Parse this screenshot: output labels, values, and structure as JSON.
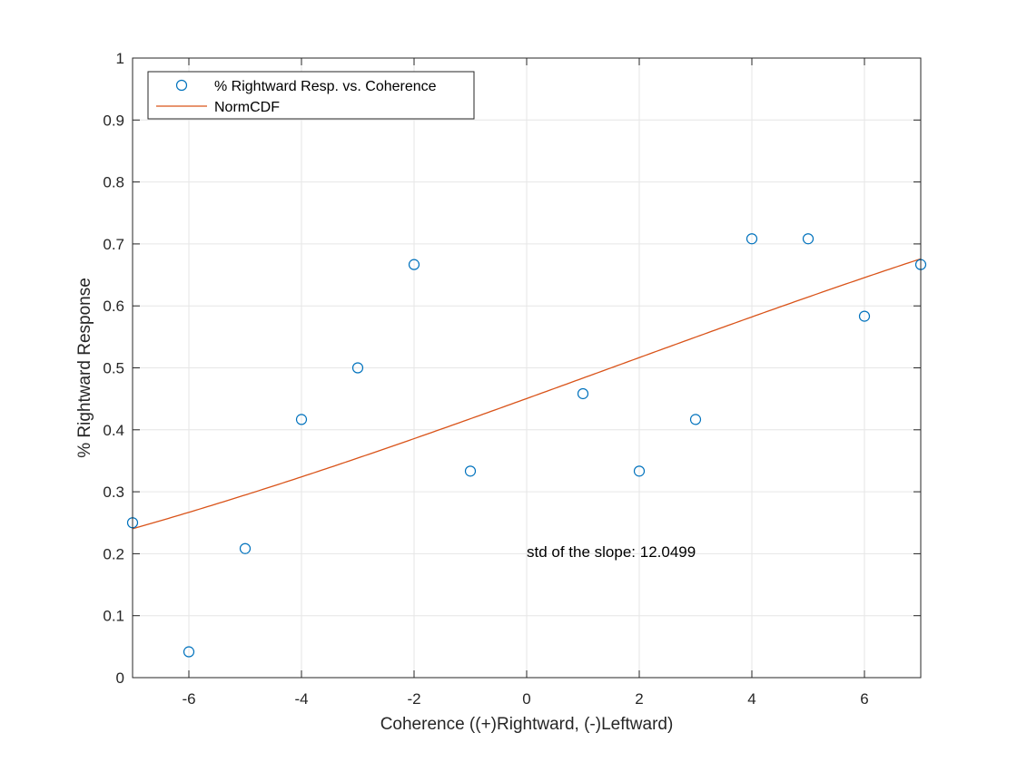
{
  "chart_data": {
    "type": "scatter",
    "xlabel": "Coherence ((+)Rightward, (-)Leftward)",
    "ylabel": "% Rightward Response",
    "xlim": [
      -7,
      7
    ],
    "ylim": [
      0,
      1
    ],
    "xticks": [
      -6,
      -4,
      -2,
      0,
      2,
      4,
      6
    ],
    "yticks": [
      0,
      0.1,
      0.2,
      0.3,
      0.4,
      0.5,
      0.6,
      0.7,
      0.8,
      0.9,
      1
    ],
    "grid": true,
    "legend_position": "top-left",
    "series": [
      {
        "name": "% Rightward Resp. vs. Coherence",
        "kind": "markers",
        "marker": "circle",
        "color": "#0072BD",
        "x": [
          -7,
          -6,
          -5,
          -4,
          -3,
          -2,
          -1,
          1,
          2,
          3,
          4,
          5,
          6,
          7
        ],
        "y": [
          0.25,
          0.0417,
          0.2083,
          0.4167,
          0.5,
          0.6667,
          0.3333,
          0.4583,
          0.3333,
          0.4167,
          0.7083,
          0.7083,
          0.5833,
          0.6667
        ]
      },
      {
        "name": "NormCDF",
        "kind": "line",
        "color": "#D95319",
        "mu": 1.5,
        "sigma": 12.0499,
        "x_range": [
          -7,
          7
        ]
      }
    ],
    "annotations": [
      {
        "text": "std of the slope: 12.0499",
        "x": 0,
        "y": 0.195
      }
    ]
  }
}
